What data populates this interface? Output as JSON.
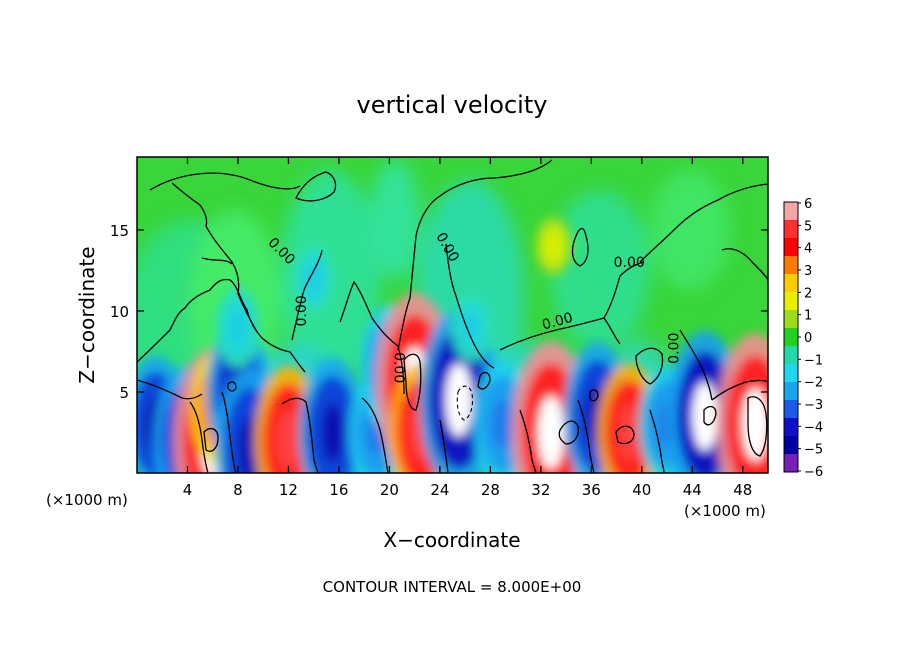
{
  "chart_data": {
    "type": "heatmap",
    "title": "vertical velocity",
    "xlabel": "X−coordinate",
    "ylabel": "Z−coordinate",
    "x_unit_left": "(×1000 m)",
    "x_unit_right": "(×1000 m)",
    "footer": "CONTOUR INTERVAL = 8.000E+00",
    "xlim": [
      0,
      50
    ],
    "ylim": [
      0,
      19.5
    ],
    "x_ticks": [
      4,
      8,
      12,
      16,
      20,
      24,
      28,
      32,
      36,
      40,
      44,
      48
    ],
    "y_ticks": [
      5,
      10,
      15
    ],
    "colorbar": {
      "labels": [
        "6",
        "5",
        "4",
        "3",
        "2",
        "1",
        "0",
        "−1",
        "−2",
        "−3",
        "−4",
        "−5",
        "−6"
      ],
      "colors": [
        "#f4a6a6",
        "#ff3030",
        "#ff0000",
        "#ff7a00",
        "#ffcc00",
        "#e8f000",
        "#9bdc1c",
        "#22d022",
        "#22d8a8",
        "#1ed8ee",
        "#1aa6ee",
        "#1e5ae6",
        "#1010c8",
        "#0000a0",
        "#7820b4"
      ]
    },
    "contour_labels": [
      {
        "text": "0.00",
        "x": 11.2,
        "y": 13.5,
        "rotate": 45
      },
      {
        "text": "0.00",
        "x": 13.4,
        "y": 10.0,
        "rotate": -90
      },
      {
        "text": "0.00",
        "x": 20.4,
        "y": 6.5,
        "rotate": 90
      },
      {
        "text": "0.00",
        "x": 24.3,
        "y": 13.8,
        "rotate": 60
      },
      {
        "text": "0.00",
        "x": 33.4,
        "y": 9.1,
        "rotate": -15
      },
      {
        "text": "0.00",
        "x": 39.0,
        "y": 12.7,
        "rotate": 0
      },
      {
        "text": "0.00",
        "x": 42.9,
        "y": 7.7,
        "rotate": -90
      }
    ],
    "cells": [
      {
        "x": 1.5,
        "z": 3.0,
        "w": -4.0
      },
      {
        "x": 4.0,
        "z": 2.0,
        "w": -4.5
      },
      {
        "x": 6.0,
        "z": 2.0,
        "w": 6.0
      },
      {
        "x": 6.5,
        "z": 4.0,
        "w": 3.0
      },
      {
        "x": 8.0,
        "z": 5.0,
        "w": -4.0
      },
      {
        "x": 9.0,
        "z": 1.5,
        "w": -5.0
      },
      {
        "x": 12.0,
        "z": 2.0,
        "w": 4.5
      },
      {
        "x": 15.5,
        "z": 2.5,
        "w": -4.5
      },
      {
        "x": 19.0,
        "z": 2.5,
        "w": -3.0
      },
      {
        "x": 20.0,
        "z": 6.5,
        "w": -3.5
      },
      {
        "x": 22.0,
        "z": 5.5,
        "w": 6.0
      },
      {
        "x": 22.5,
        "z": 2.5,
        "w": 4.0
      },
      {
        "x": 25.5,
        "z": 4.5,
        "w": -6.0
      },
      {
        "x": 29.0,
        "z": 3.0,
        "w": -3.5
      },
      {
        "x": 32.8,
        "z": 2.5,
        "w": 6.0
      },
      {
        "x": 36.5,
        "z": 3.5,
        "w": -4.5
      },
      {
        "x": 39.0,
        "z": 2.5,
        "w": 4.0
      },
      {
        "x": 42.0,
        "z": 3.0,
        "w": -3.0
      },
      {
        "x": 45.0,
        "z": 3.5,
        "w": -5.5
      },
      {
        "x": 49.0,
        "z": 3.0,
        "w": 6.0
      },
      {
        "x": 26.5,
        "z": 9.0,
        "w": -1.0
      },
      {
        "x": 14.0,
        "z": 12.0,
        "w": -1.0
      },
      {
        "x": 33.0,
        "z": 14.0,
        "w": 0.5
      },
      {
        "x": 8.0,
        "z": 9.0,
        "w": -1.5
      }
    ]
  }
}
